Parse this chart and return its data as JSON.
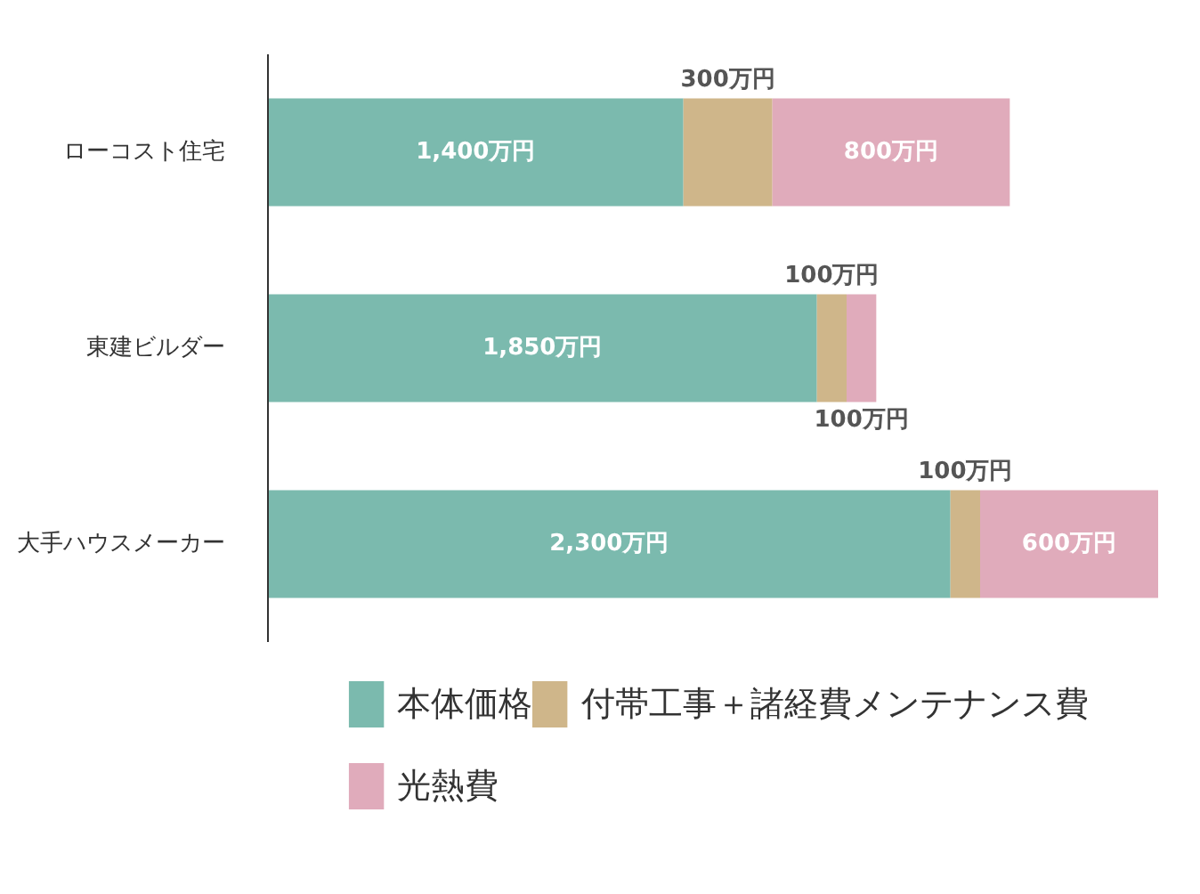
{
  "chart_data": {
    "type": "bar",
    "orientation": "horizontal",
    "stacked": true,
    "categories": [
      "ローコスト住宅",
      "東建ビルダー",
      "大手ハウスメーカー"
    ],
    "series": [
      {
        "name": "本体価格",
        "color": "#7bbaae",
        "values": [
          1400,
          1850,
          2300
        ],
        "value_labels": [
          "1,400万円",
          "1,850万円",
          "2,300万円"
        ]
      },
      {
        "name": "付帯工事＋諸経費メンテナンス費",
        "color": "#cfb68a",
        "values": [
          300,
          100,
          100
        ],
        "value_labels": [
          "300万円",
          "100万円",
          "100万円"
        ]
      },
      {
        "name": "光熱費",
        "color": "#e0abbb",
        "values": [
          800,
          100,
          600
        ],
        "value_labels": [
          "800万円",
          "100万円",
          "600万円"
        ]
      }
    ],
    "legend": "bottom",
    "grid": false
  }
}
